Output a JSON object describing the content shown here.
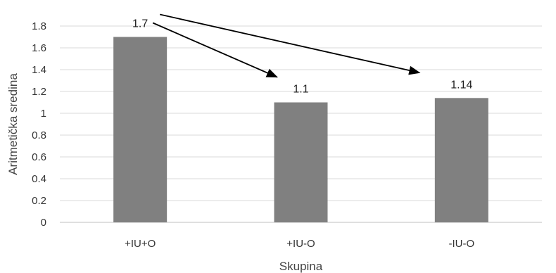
{
  "chart_data": {
    "type": "bar",
    "categories": [
      "+IU+O",
      "+IU-O",
      "-IU-O"
    ],
    "values": [
      1.7,
      1.1,
      1.14
    ],
    "data_labels": [
      "1.7",
      "1.1",
      "1.14"
    ],
    "title": "",
    "xlabel": "Skupina",
    "ylabel": "Aritmetička sredina",
    "ylim": [
      0,
      1.8
    ],
    "yticks": [
      0,
      0.2,
      0.4,
      0.6,
      0.8,
      1,
      1.2,
      1.4,
      1.6,
      1.8
    ],
    "ytick_labels": [
      "0",
      "0.2",
      "0.4",
      "0.6",
      "0.8",
      "1",
      "1.2",
      "1.4",
      "1.6",
      "1.8"
    ],
    "grid": true,
    "legend": "none",
    "bar_color": "#808080",
    "annotations": [
      {
        "type": "arrow",
        "from": "+IU+O",
        "to": "+IU-O"
      },
      {
        "type": "arrow",
        "from": "+IU+O",
        "to": "-IU-O"
      }
    ]
  }
}
